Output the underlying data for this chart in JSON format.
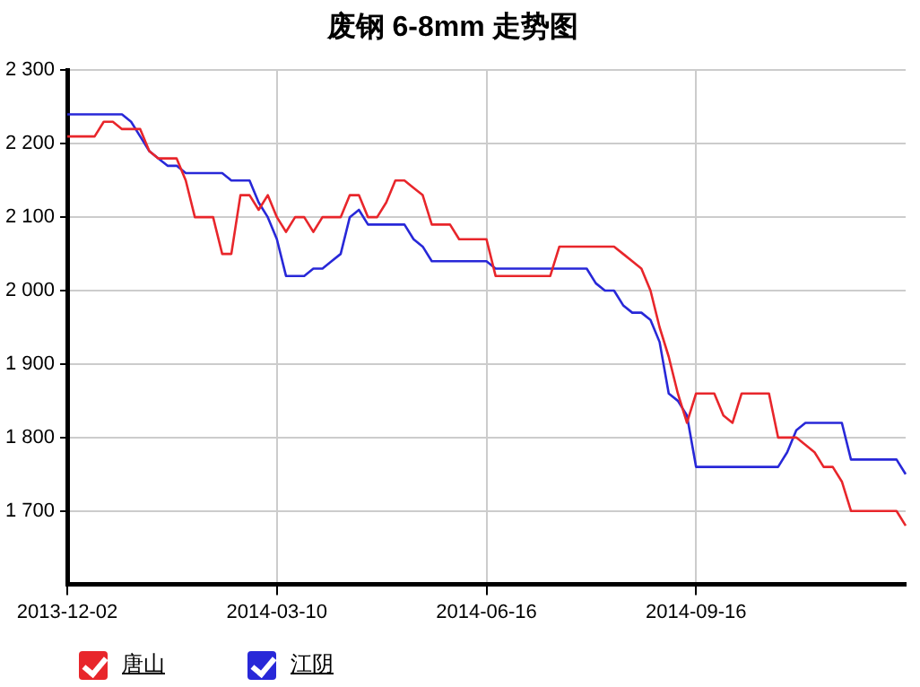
{
  "chart_data": {
    "type": "line",
    "title": "废钢 6-8mm 走势图",
    "categories": [
      "2013-12-02",
      null,
      null,
      null,
      null,
      null,
      null,
      null,
      null,
      null,
      null,
      null,
      null,
      null,
      null,
      null,
      null,
      null,
      null,
      null,
      null,
      null,
      null,
      "2014-03-10",
      null,
      null,
      null,
      null,
      null,
      null,
      null,
      null,
      null,
      null,
      null,
      null,
      null,
      null,
      null,
      null,
      null,
      null,
      null,
      null,
      null,
      null,
      "2014-06-16",
      null,
      null,
      null,
      null,
      null,
      null,
      null,
      null,
      null,
      null,
      null,
      null,
      null,
      null,
      null,
      null,
      null,
      null,
      null,
      null,
      null,
      null,
      "2014-09-16",
      null,
      null,
      null,
      null,
      null,
      null,
      null,
      null,
      null,
      null,
      null,
      null,
      null,
      null,
      null,
      null,
      null,
      null,
      null,
      null,
      null,
      null,
      null
    ],
    "series": [
      {
        "name": "唐山",
        "color": "#e8262b",
        "values": [
          2210,
          2210,
          2210,
          2210,
          2230,
          2230,
          2220,
          2220,
          2220,
          2190,
          2180,
          2180,
          2180,
          2150,
          2100,
          2100,
          2100,
          2050,
          2050,
          2130,
          2130,
          2110,
          2130,
          2100,
          2080,
          2100,
          2100,
          2080,
          2100,
          2100,
          2100,
          2130,
          2130,
          2100,
          2100,
          2120,
          2150,
          2150,
          2140,
          2130,
          2090,
          2090,
          2090,
          2070,
          2070,
          2070,
          2070,
          2020,
          2020,
          2020,
          2020,
          2020,
          2020,
          2020,
          2060,
          2060,
          2060,
          2060,
          2060,
          2060,
          2060,
          2050,
          2040,
          2030,
          2000,
          1950,
          1910,
          1860,
          1820,
          1860,
          1860,
          1860,
          1830,
          1820,
          1860,
          1860,
          1860,
          1860,
          1800,
          1800,
          1800,
          1790,
          1780,
          1760,
          1760,
          1740,
          1700,
          1700,
          1700,
          1700,
          1700,
          1700,
          1680
        ]
      },
      {
        "name": "江阴",
        "color": "#2828d8",
        "values": [
          2240,
          2240,
          2240,
          2240,
          2240,
          2240,
          2240,
          2230,
          2210,
          2190,
          2180,
          2170,
          2170,
          2160,
          2160,
          2160,
          2160,
          2160,
          2150,
          2150,
          2150,
          2120,
          2100,
          2070,
          2020,
          2020,
          2020,
          2030,
          2030,
          2040,
          2050,
          2100,
          2110,
          2090,
          2090,
          2090,
          2090,
          2090,
          2070,
          2060,
          2040,
          2040,
          2040,
          2040,
          2040,
          2040,
          2040,
          2030,
          2030,
          2030,
          2030,
          2030,
          2030,
          2030,
          2030,
          2030,
          2030,
          2030,
          2010,
          2000,
          2000,
          1980,
          1970,
          1970,
          1960,
          1930,
          1860,
          1850,
          1830,
          1760,
          1760,
          1760,
          1760,
          1760,
          1760,
          1760,
          1760,
          1760,
          1760,
          1780,
          1810,
          1820,
          1820,
          1820,
          1820,
          1820,
          1770,
          1770,
          1770,
          1770,
          1770,
          1770,
          1750
        ]
      }
    ],
    "ylim": [
      1600,
      2300
    ],
    "yticks": [
      {
        "value": 1700,
        "label": "1 700"
      },
      {
        "value": 1800,
        "label": "1 800"
      },
      {
        "value": 1900,
        "label": "1 900"
      },
      {
        "value": 2000,
        "label": "2 000"
      },
      {
        "value": 2100,
        "label": "2 100"
      },
      {
        "value": 2200,
        "label": "2 200"
      },
      {
        "value": 2300,
        "label": "2 300"
      }
    ],
    "grid": true,
    "legend": "bottom left",
    "marker": "none",
    "line_style": "solid"
  }
}
